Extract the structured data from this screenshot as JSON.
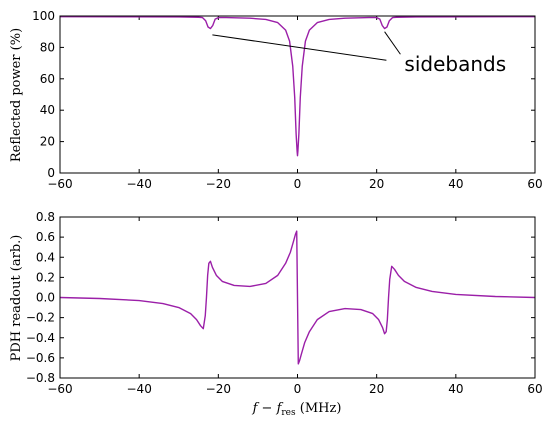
{
  "chart_data": [
    {
      "type": "line",
      "id": "reflection",
      "ylabel": "Reflected power (%)",
      "xlim": [
        -60,
        60
      ],
      "ylim": [
        0,
        100
      ],
      "xticks": [
        -60,
        -40,
        -20,
        0,
        20,
        40,
        60
      ],
      "yticks": [
        0,
        20,
        40,
        60,
        80,
        100
      ],
      "xtick_labels": [
        "−60",
        "−40",
        "−20",
        "0",
        "20",
        "40",
        "60"
      ],
      "ytick_labels": [
        "0",
        "20",
        "40",
        "60",
        "80",
        "100"
      ],
      "grid": false,
      "series": [
        {
          "color": "#9b1fa8",
          "x": [
            -60,
            -30,
            -25,
            -24,
            -23.2,
            -22.6,
            -22,
            -21.4,
            -20.8,
            -20,
            -18,
            -12,
            -8,
            -5,
            -3,
            -2,
            -1.2,
            -0.7,
            -0.35,
            -0.1,
            0,
            0.1,
            0.35,
            0.7,
            1.2,
            2,
            3,
            5,
            8,
            12,
            18,
            20,
            20.8,
            21.4,
            22,
            22.6,
            23.2,
            24,
            25,
            30,
            60
          ],
          "y": [
            99.6,
            99.4,
            99.2,
            99.0,
            97,
            93,
            92,
            94,
            98,
            99.0,
            99.0,
            98.6,
            97.8,
            95.8,
            91,
            84,
            68,
            48,
            25,
            14,
            11,
            14,
            25,
            48,
            68,
            84,
            91,
            95.8,
            97.8,
            98.6,
            99.0,
            99.0,
            98,
            94,
            92,
            93,
            97,
            99.0,
            99.2,
            99.4,
            99.6
          ]
        }
      ],
      "annotations": [
        {
          "text": "sidebands",
          "x": 26,
          "y": 68,
          "points_to": [
            [
              -21.5,
              88
            ],
            [
              22,
              90
            ]
          ]
        }
      ]
    },
    {
      "type": "line",
      "id": "pdh",
      "ylabel": "PDH readout (arb.)",
      "xlabel_parts": {
        "f": "f",
        "minus": " − ",
        "fres": "f",
        "sub": "res",
        "unit": " (MHz)"
      },
      "xlim": [
        -60,
        60
      ],
      "ylim": [
        -0.8,
        0.8
      ],
      "xticks": [
        -60,
        -40,
        -20,
        0,
        20,
        40,
        60
      ],
      "yticks": [
        -0.8,
        -0.6,
        -0.4,
        -0.2,
        0.0,
        0.2,
        0.4,
        0.6,
        0.8
      ],
      "xtick_labels": [
        "−60",
        "−40",
        "−20",
        "0",
        "20",
        "40",
        "60"
      ],
      "ytick_labels": [
        "−0.8",
        "−0.6",
        "−0.4",
        "−0.2",
        "0.0",
        "0.2",
        "0.4",
        "0.6",
        "0.8"
      ],
      "grid": false,
      "series": [
        {
          "color": "#9b1fa8",
          "x": [
            -60,
            -50,
            -40,
            -34,
            -30,
            -27,
            -25.5,
            -24.5,
            -23.8,
            -23.3,
            -23.0,
            -22.7,
            -22.4,
            -22.0,
            -21.5,
            -20.5,
            -19,
            -16,
            -12,
            -8,
            -5,
            -3,
            -1.8,
            -1.0,
            -0.5,
            -0.2,
            0,
            0.2,
            0.5,
            1.0,
            1.8,
            3,
            5,
            8,
            12,
            16,
            19,
            20.5,
            21.5,
            22.0,
            22.4,
            22.7,
            23.0,
            23.3,
            23.8,
            24.5,
            25.5,
            27,
            30,
            34,
            40,
            50,
            60
          ],
          "y": [
            0.0,
            -0.01,
            -0.03,
            -0.06,
            -0.1,
            -0.16,
            -0.22,
            -0.28,
            -0.31,
            -0.18,
            0.0,
            0.22,
            0.34,
            0.36,
            0.3,
            0.22,
            0.16,
            0.12,
            0.11,
            0.14,
            0.22,
            0.34,
            0.45,
            0.56,
            0.63,
            0.66,
            0.0,
            -0.66,
            -0.63,
            -0.56,
            -0.45,
            -0.34,
            -0.22,
            -0.14,
            -0.11,
            -0.12,
            -0.16,
            -0.22,
            -0.3,
            -0.36,
            -0.34,
            -0.22,
            0.0,
            0.18,
            0.31,
            0.28,
            0.22,
            0.16,
            0.1,
            0.06,
            0.03,
            0.01,
            0.0
          ]
        }
      ]
    }
  ]
}
